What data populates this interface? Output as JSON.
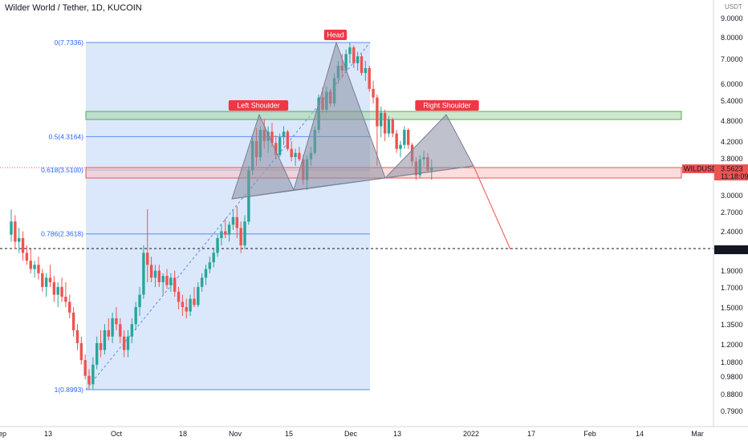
{
  "header": {
    "title": "Wilder World / Tether, 1D, KUCOIN",
    "currency": "USDT"
  },
  "colors": {
    "up": "#26a69a",
    "down": "#ef5350",
    "fib_fill": "#dbe7fb",
    "fib_line": "#5b8def",
    "pattern_fill": "#8b8fa3",
    "shoulder_zone": "#a5d6a7",
    "support_zone": "#f8c6c6",
    "label_bg": "#f23645",
    "price_tag": "#131722"
  },
  "price_axis": {
    "scale": "log",
    "ticks": [
      "9.0000",
      "8.0000",
      "7.0000",
      "6.0000",
      "5.4000",
      "4.8000",
      "4.2000",
      "3.8000",
      "3.0000",
      "2.7000",
      "2.4000",
      "1.9000",
      "1.7000",
      "1.5000",
      "1.3500",
      "1.2000",
      "1.0800",
      "0.9800",
      "0.8800",
      "0.7900"
    ],
    "current_price": "3.5623",
    "countdown": "11:18:09",
    "symbol_tag": "WILDUSDT",
    "marked_level": "2.1569"
  },
  "time_axis": {
    "labels": [
      "Sep",
      "13",
      "Oct",
      "18",
      "Nov",
      "15",
      "Dec",
      "13",
      "2022",
      "17",
      "Feb",
      "14",
      "Mar"
    ]
  },
  "fibonacci": [
    {
      "label": "0(7.7336)",
      "price": 7.7336
    },
    {
      "label": "0.5(4.3164)",
      "price": 4.3164
    },
    {
      "label": "0.618(3.5100)",
      "price": 3.51
    },
    {
      "label": "0.786(2.3618)",
      "price": 2.3618
    },
    {
      "label": "1(0.8993)",
      "price": 0.8993
    }
  ],
  "annotations": {
    "head": "Head",
    "left_shoulder": "Left Shoulder",
    "right_shoulder": "Right Shoulder"
  },
  "chart_data": {
    "type": "candlestick",
    "title": "Wilder World / Tether, 1D, KUCOIN",
    "y_scale": "log",
    "ylim": [
      0.75,
      10.2
    ],
    "x_range_days": [
      "2021-09-01",
      "2022-03-05"
    ],
    "series": [
      {
        "name": "WILDUSDT",
        "points": [
          {
            "date": "2021-09-01",
            "o": 2.35,
            "h": 2.75,
            "l": 2.25,
            "c": 2.55
          },
          {
            "date": "2021-09-02",
            "o": 2.55,
            "h": 2.65,
            "l": 2.15,
            "c": 2.25
          },
          {
            "date": "2021-09-03",
            "o": 2.25,
            "h": 2.45,
            "l": 2.1,
            "c": 2.3
          },
          {
            "date": "2021-09-04",
            "o": 2.3,
            "h": 2.4,
            "l": 2.0,
            "c": 2.1
          },
          {
            "date": "2021-09-05",
            "o": 2.1,
            "h": 2.2,
            "l": 1.95,
            "c": 2.0
          },
          {
            "date": "2021-09-06",
            "o": 2.0,
            "h": 2.15,
            "l": 1.85,
            "c": 1.9
          },
          {
            "date": "2021-09-07",
            "o": 1.9,
            "h": 2.0,
            "l": 1.8,
            "c": 1.95
          },
          {
            "date": "2021-09-08",
            "o": 1.95,
            "h": 2.05,
            "l": 1.78,
            "c": 1.85
          },
          {
            "date": "2021-09-09",
            "o": 1.85,
            "h": 1.9,
            "l": 1.65,
            "c": 1.7
          },
          {
            "date": "2021-09-10",
            "o": 1.7,
            "h": 1.85,
            "l": 1.6,
            "c": 1.8
          },
          {
            "date": "2021-09-11",
            "o": 1.8,
            "h": 1.95,
            "l": 1.7,
            "c": 1.75
          },
          {
            "date": "2021-09-12",
            "o": 1.75,
            "h": 1.82,
            "l": 1.55,
            "c": 1.62
          },
          {
            "date": "2021-09-13",
            "o": 1.62,
            "h": 1.75,
            "l": 1.5,
            "c": 1.7
          },
          {
            "date": "2021-09-14",
            "o": 1.7,
            "h": 1.8,
            "l": 1.55,
            "c": 1.6
          },
          {
            "date": "2021-09-15",
            "o": 1.6,
            "h": 1.75,
            "l": 1.5,
            "c": 1.55
          },
          {
            "date": "2021-09-16",
            "o": 1.55,
            "h": 1.62,
            "l": 1.4,
            "c": 1.45
          },
          {
            "date": "2021-09-17",
            "o": 1.45,
            "h": 1.5,
            "l": 1.25,
            "c": 1.3
          },
          {
            "date": "2021-09-18",
            "o": 1.3,
            "h": 1.35,
            "l": 1.15,
            "c": 1.2
          },
          {
            "date": "2021-09-19",
            "o": 1.2,
            "h": 1.25,
            "l": 1.05,
            "c": 1.08
          },
          {
            "date": "2021-09-20",
            "o": 1.08,
            "h": 1.12,
            "l": 0.96,
            "c": 0.98
          },
          {
            "date": "2021-09-21",
            "o": 0.98,
            "h": 1.02,
            "l": 0.9,
            "c": 0.93
          },
          {
            "date": "2021-09-22",
            "o": 0.93,
            "h": 1.1,
            "l": 0.9,
            "c": 1.05
          },
          {
            "date": "2021-09-23",
            "o": 1.05,
            "h": 1.25,
            "l": 1.02,
            "c": 1.2
          },
          {
            "date": "2021-09-24",
            "o": 1.2,
            "h": 1.3,
            "l": 1.1,
            "c": 1.15
          },
          {
            "date": "2021-09-25",
            "o": 1.15,
            "h": 1.35,
            "l": 1.12,
            "c": 1.3
          },
          {
            "date": "2021-09-26",
            "o": 1.3,
            "h": 1.4,
            "l": 1.22,
            "c": 1.25
          },
          {
            "date": "2021-09-27",
            "o": 1.25,
            "h": 1.45,
            "l": 1.2,
            "c": 1.4
          },
          {
            "date": "2021-09-28",
            "o": 1.4,
            "h": 1.5,
            "l": 1.3,
            "c": 1.35
          },
          {
            "date": "2021-09-29",
            "o": 1.35,
            "h": 1.4,
            "l": 1.2,
            "c": 1.25
          },
          {
            "date": "2021-09-30",
            "o": 1.25,
            "h": 1.3,
            "l": 1.1,
            "c": 1.15
          },
          {
            "date": "2021-10-01",
            "o": 1.15,
            "h": 1.3,
            "l": 1.1,
            "c": 1.25
          },
          {
            "date": "2021-10-02",
            "o": 1.25,
            "h": 1.4,
            "l": 1.2,
            "c": 1.35
          },
          {
            "date": "2021-10-03",
            "o": 1.35,
            "h": 1.55,
            "l": 1.3,
            "c": 1.5
          },
          {
            "date": "2021-10-04",
            "o": 1.5,
            "h": 1.7,
            "l": 1.42,
            "c": 1.62
          },
          {
            "date": "2021-10-05",
            "o": 1.62,
            "h": 2.2,
            "l": 1.58,
            "c": 2.1
          },
          {
            "date": "2021-10-06",
            "o": 2.1,
            "h": 2.75,
            "l": 1.75,
            "c": 1.95
          },
          {
            "date": "2021-10-07",
            "o": 1.95,
            "h": 2.05,
            "l": 1.75,
            "c": 1.8
          },
          {
            "date": "2021-10-08",
            "o": 1.8,
            "h": 1.95,
            "l": 1.7,
            "c": 1.88
          },
          {
            "date": "2021-10-09",
            "o": 1.88,
            "h": 1.95,
            "l": 1.7,
            "c": 1.75
          },
          {
            "date": "2021-10-10",
            "o": 1.75,
            "h": 1.85,
            "l": 1.62,
            "c": 1.82
          },
          {
            "date": "2021-10-11",
            "o": 1.82,
            "h": 1.9,
            "l": 1.68,
            "c": 1.72
          },
          {
            "date": "2021-10-12",
            "o": 1.72,
            "h": 1.85,
            "l": 1.65,
            "c": 1.8
          },
          {
            "date": "2021-10-13",
            "o": 1.8,
            "h": 1.88,
            "l": 1.6,
            "c": 1.65
          },
          {
            "date": "2021-10-14",
            "o": 1.65,
            "h": 1.7,
            "l": 1.48,
            "c": 1.55
          },
          {
            "date": "2021-10-15",
            "o": 1.55,
            "h": 1.62,
            "l": 1.42,
            "c": 1.5
          },
          {
            "date": "2021-10-16",
            "o": 1.5,
            "h": 1.58,
            "l": 1.4,
            "c": 1.46
          },
          {
            "date": "2021-10-17",
            "o": 1.46,
            "h": 1.62,
            "l": 1.42,
            "c": 1.58
          },
          {
            "date": "2021-10-18",
            "o": 1.58,
            "h": 1.7,
            "l": 1.5,
            "c": 1.52
          },
          {
            "date": "2021-10-19",
            "o": 1.52,
            "h": 1.75,
            "l": 1.5,
            "c": 1.7
          },
          {
            "date": "2021-10-20",
            "o": 1.7,
            "h": 1.85,
            "l": 1.65,
            "c": 1.8
          },
          {
            "date": "2021-10-21",
            "o": 1.8,
            "h": 1.95,
            "l": 1.72,
            "c": 1.9
          },
          {
            "date": "2021-10-22",
            "o": 1.9,
            "h": 2.05,
            "l": 1.85,
            "c": 1.98
          },
          {
            "date": "2021-10-23",
            "o": 1.98,
            "h": 2.15,
            "l": 1.92,
            "c": 2.1
          },
          {
            "date": "2021-10-24",
            "o": 2.1,
            "h": 2.35,
            "l": 2.05,
            "c": 2.3
          },
          {
            "date": "2021-10-25",
            "o": 2.3,
            "h": 2.5,
            "l": 2.2,
            "c": 2.4
          },
          {
            "date": "2021-10-26",
            "o": 2.4,
            "h": 2.6,
            "l": 2.3,
            "c": 2.35
          },
          {
            "date": "2021-10-27",
            "o": 2.35,
            "h": 2.55,
            "l": 2.25,
            "c": 2.5
          },
          {
            "date": "2021-10-28",
            "o": 2.5,
            "h": 2.75,
            "l": 2.42,
            "c": 2.62
          },
          {
            "date": "2021-10-29",
            "o": 2.62,
            "h": 2.8,
            "l": 2.3,
            "c": 2.45
          },
          {
            "date": "2021-10-30",
            "o": 2.45,
            "h": 2.55,
            "l": 2.1,
            "c": 2.2
          },
          {
            "date": "2021-10-31",
            "o": 2.2,
            "h": 2.65,
            "l": 2.15,
            "c": 2.55
          },
          {
            "date": "2021-11-01",
            "o": 2.55,
            "h": 3.6,
            "l": 2.5,
            "c": 3.5
          },
          {
            "date": "2021-11-02",
            "o": 3.5,
            "h": 4.3,
            "l": 3.4,
            "c": 4.2
          },
          {
            "date": "2021-11-03",
            "o": 4.2,
            "h": 4.55,
            "l": 3.6,
            "c": 3.8
          },
          {
            "date": "2021-11-04",
            "o": 3.8,
            "h": 4.6,
            "l": 3.7,
            "c": 4.5
          },
          {
            "date": "2021-11-05",
            "o": 4.5,
            "h": 4.8,
            "l": 4.0,
            "c": 4.2
          },
          {
            "date": "2021-11-06",
            "o": 4.2,
            "h": 4.6,
            "l": 3.9,
            "c": 4.45
          },
          {
            "date": "2021-11-07",
            "o": 4.45,
            "h": 4.7,
            "l": 4.05,
            "c": 4.15
          },
          {
            "date": "2021-11-08",
            "o": 4.15,
            "h": 4.35,
            "l": 3.75,
            "c": 3.85
          },
          {
            "date": "2021-11-09",
            "o": 3.85,
            "h": 4.4,
            "l": 3.8,
            "c": 4.3
          },
          {
            "date": "2021-11-10",
            "o": 4.3,
            "h": 4.6,
            "l": 4.1,
            "c": 4.45
          },
          {
            "date": "2021-11-11",
            "o": 4.45,
            "h": 4.5,
            "l": 3.95,
            "c": 4.0
          },
          {
            "date": "2021-11-12",
            "o": 4.0,
            "h": 4.2,
            "l": 3.7,
            "c": 3.8
          },
          {
            "date": "2021-11-13",
            "o": 3.8,
            "h": 4.0,
            "l": 3.6,
            "c": 3.9
          },
          {
            "date": "2021-11-14",
            "o": 3.9,
            "h": 4.05,
            "l": 3.7,
            "c": 3.75
          },
          {
            "date": "2021-11-15",
            "o": 3.75,
            "h": 3.85,
            "l": 3.2,
            "c": 3.3
          },
          {
            "date": "2021-11-16",
            "o": 3.3,
            "h": 3.85,
            "l": 3.1,
            "c": 3.75
          },
          {
            "date": "2021-11-17",
            "o": 3.75,
            "h": 4.05,
            "l": 3.6,
            "c": 3.9
          },
          {
            "date": "2021-11-18",
            "o": 3.9,
            "h": 4.6,
            "l": 3.85,
            "c": 4.5
          },
          {
            "date": "2021-11-19",
            "o": 4.5,
            "h": 5.6,
            "l": 4.4,
            "c": 5.5
          },
          {
            "date": "2021-11-20",
            "o": 5.5,
            "h": 5.85,
            "l": 5.0,
            "c": 5.1
          },
          {
            "date": "2021-11-21",
            "o": 5.1,
            "h": 5.9,
            "l": 5.0,
            "c": 5.7
          },
          {
            "date": "2021-11-22",
            "o": 5.7,
            "h": 5.8,
            "l": 5.2,
            "c": 5.3
          },
          {
            "date": "2021-11-23",
            "o": 5.3,
            "h": 6.4,
            "l": 5.2,
            "c": 6.2
          },
          {
            "date": "2021-11-24",
            "o": 6.2,
            "h": 6.9,
            "l": 6.0,
            "c": 6.7
          },
          {
            "date": "2021-11-25",
            "o": 6.7,
            "h": 7.2,
            "l": 6.2,
            "c": 6.5
          },
          {
            "date": "2021-11-26",
            "o": 6.5,
            "h": 7.4,
            "l": 6.4,
            "c": 7.2
          },
          {
            "date": "2021-11-27",
            "o": 7.2,
            "h": 7.73,
            "l": 6.8,
            "c": 7.5
          },
          {
            "date": "2021-11-28",
            "o": 7.5,
            "h": 7.6,
            "l": 6.6,
            "c": 6.8
          },
          {
            "date": "2021-11-29",
            "o": 6.8,
            "h": 7.3,
            "l": 6.5,
            "c": 7.1
          },
          {
            "date": "2021-11-30",
            "o": 7.1,
            "h": 7.2,
            "l": 6.3,
            "c": 6.4
          },
          {
            "date": "2021-12-01",
            "o": 6.4,
            "h": 6.9,
            "l": 6.1,
            "c": 6.6
          },
          {
            "date": "2021-12-02",
            "o": 6.6,
            "h": 6.7,
            "l": 5.7,
            "c": 5.8
          },
          {
            "date": "2021-12-03",
            "o": 5.8,
            "h": 6.1,
            "l": 5.3,
            "c": 5.5
          },
          {
            "date": "2021-12-04",
            "o": 5.5,
            "h": 5.6,
            "l": 3.6,
            "c": 4.6
          },
          {
            "date": "2021-12-05",
            "o": 4.6,
            "h": 5.2,
            "l": 4.3,
            "c": 5.0
          },
          {
            "date": "2021-12-06",
            "o": 5.0,
            "h": 5.1,
            "l": 4.2,
            "c": 4.4
          },
          {
            "date": "2021-12-07",
            "o": 4.4,
            "h": 4.9,
            "l": 4.3,
            "c": 4.8
          },
          {
            "date": "2021-12-08",
            "o": 4.8,
            "h": 4.85,
            "l": 4.3,
            "c": 4.4
          },
          {
            "date": "2021-12-09",
            "o": 4.4,
            "h": 4.5,
            "l": 3.9,
            "c": 4.0
          },
          {
            "date": "2021-12-10",
            "o": 4.0,
            "h": 4.2,
            "l": 3.8,
            "c": 4.1
          },
          {
            "date": "2021-12-11",
            "o": 4.1,
            "h": 4.6,
            "l": 4.0,
            "c": 4.5
          },
          {
            "date": "2021-12-12",
            "o": 4.5,
            "h": 4.55,
            "l": 4.0,
            "c": 4.1
          },
          {
            "date": "2021-12-13",
            "o": 4.1,
            "h": 4.15,
            "l": 3.6,
            "c": 3.7
          },
          {
            "date": "2021-12-14",
            "o": 3.7,
            "h": 3.8,
            "l": 3.3,
            "c": 3.4
          },
          {
            "date": "2021-12-15",
            "o": 3.4,
            "h": 3.85,
            "l": 3.35,
            "c": 3.75
          },
          {
            "date": "2021-12-16",
            "o": 3.75,
            "h": 3.95,
            "l": 3.6,
            "c": 3.8
          },
          {
            "date": "2021-12-17",
            "o": 3.8,
            "h": 3.9,
            "l": 3.45,
            "c": 3.5
          },
          {
            "date": "2021-12-18",
            "o": 3.5,
            "h": 3.75,
            "l": 3.3,
            "c": 3.56
          }
        ]
      }
    ]
  }
}
